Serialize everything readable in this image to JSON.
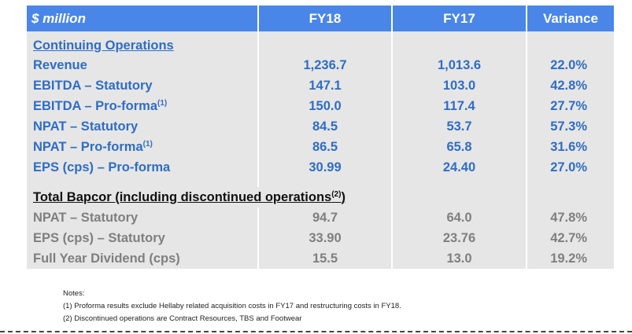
{
  "header": {
    "unit": "$ million",
    "col1": "FY18",
    "col2": "FY17",
    "col3": "Variance"
  },
  "continuing": {
    "title": "Continuing Operations",
    "rows": [
      {
        "label": "Revenue",
        "sup": "",
        "fy18": "1,236.7",
        "fy17": "1,013.6",
        "variance": "22.0%"
      },
      {
        "label": "EBITDA – Statutory",
        "sup": "",
        "fy18": "147.1",
        "fy17": "103.0",
        "variance": "42.8%"
      },
      {
        "label": "EBITDA – Pro-forma",
        "sup": "(1)",
        "fy18": "150.0",
        "fy17": "117.4",
        "variance": "27.7%"
      },
      {
        "label": "NPAT – Statutory",
        "sup": "",
        "fy18": "84.5",
        "fy17": "53.7",
        "variance": "57.3%"
      },
      {
        "label": "NPAT – Pro-forma",
        "sup": "(1)",
        "fy18": "86.5",
        "fy17": "65.8",
        "variance": "31.6%"
      },
      {
        "label": "EPS (cps) – Pro-forma",
        "sup": "",
        "fy18": "30.99",
        "fy17": "24.40",
        "variance": "27.0%"
      }
    ]
  },
  "total": {
    "title": "Total Bapcor (including discontinued operations",
    "title_sup": "(2)",
    "title_end": ")",
    "rows": [
      {
        "label": "NPAT – Statutory",
        "fy18": "94.7",
        "fy17": "64.0",
        "variance": "47.8%"
      },
      {
        "label": "EPS (cps) – Statutory",
        "fy18": "33.90",
        "fy17": "23.76",
        "variance": "42.7%"
      },
      {
        "label": "Full Year Dividend (cps)",
        "fy18": "15.5",
        "fy17": "13.0",
        "variance": "19.2%"
      }
    ]
  },
  "notes": {
    "heading": "Notes:",
    "note1": "(1) Proforma results exclude Hellaby related acquisition costs in FY17 and restructuring costs in FY18.",
    "note2": "(2) Discontinued operations are Contract Resources, TBS and Footwear"
  }
}
